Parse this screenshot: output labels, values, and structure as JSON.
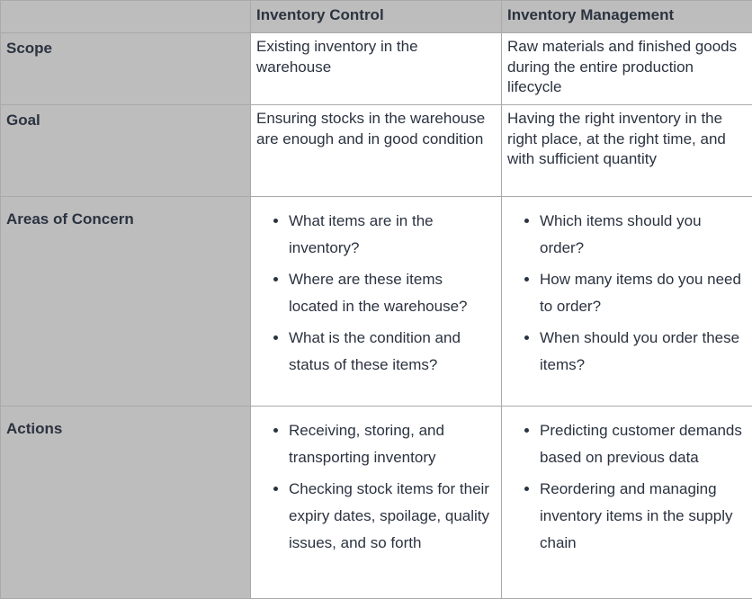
{
  "headers": [
    "",
    "Inventory Control",
    "Inventory Management"
  ],
  "rows": [
    {
      "label": "Scope",
      "control": "Existing inventory in the warehouse",
      "management": "Raw materials and finished goods during the entire production lifecycle"
    },
    {
      "label": "Goal",
      "control": "Ensuring stocks in the warehouse are enough and in good condition",
      "management": "Having the right inventory in the right place, at the right time, and with sufficient quantity"
    },
    {
      "label": "Areas of Concern",
      "control": [
        "What items are in the inventory?",
        "Where are these items located in the warehouse?",
        "What is the condition and status of these items?"
      ],
      "management": [
        "Which items should you order?",
        "How many items do you need to order?",
        "When should you order these items?"
      ]
    },
    {
      "label": "Actions",
      "control": [
        "Receiving, storing, and transporting inventory",
        "Checking stock items for their expiry dates, spoilage, quality issues, and so forth"
      ],
      "management": [
        "Predicting customer demands based on previous data",
        "Reordering and managing inventory items in the supply chain"
      ]
    }
  ]
}
